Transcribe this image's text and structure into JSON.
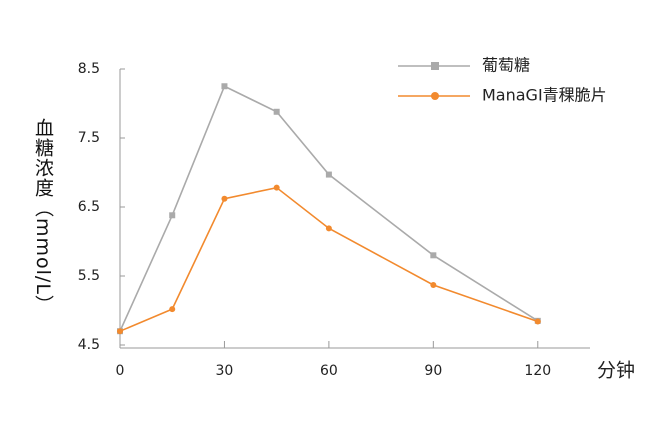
{
  "chart_data": {
    "type": "line",
    "y_label": "血糖浓度（mmol/L）",
    "x_label": "分钟",
    "x": [
      0,
      15,
      30,
      45,
      60,
      90,
      120
    ],
    "series": [
      {
        "name": "葡萄糖",
        "color": "#aaaaaa",
        "marker": "square",
        "values": [
          4.7,
          6.38,
          8.25,
          7.88,
          6.97,
          5.8,
          4.85
        ]
      },
      {
        "name": "ManaGI青稞脆片",
        "color": "#f28a2e",
        "marker": "circle",
        "values": [
          4.7,
          5.02,
          6.62,
          6.78,
          6.19,
          5.37,
          4.84
        ]
      }
    ],
    "xlim": [
      0,
      135
    ],
    "xticks": [
      0,
      30,
      60,
      90,
      120
    ],
    "ylim": [
      4.5,
      8.5
    ],
    "yticks": [
      4.5,
      5.5,
      6.5,
      7.5,
      8.5
    ],
    "legend": "top-right"
  }
}
